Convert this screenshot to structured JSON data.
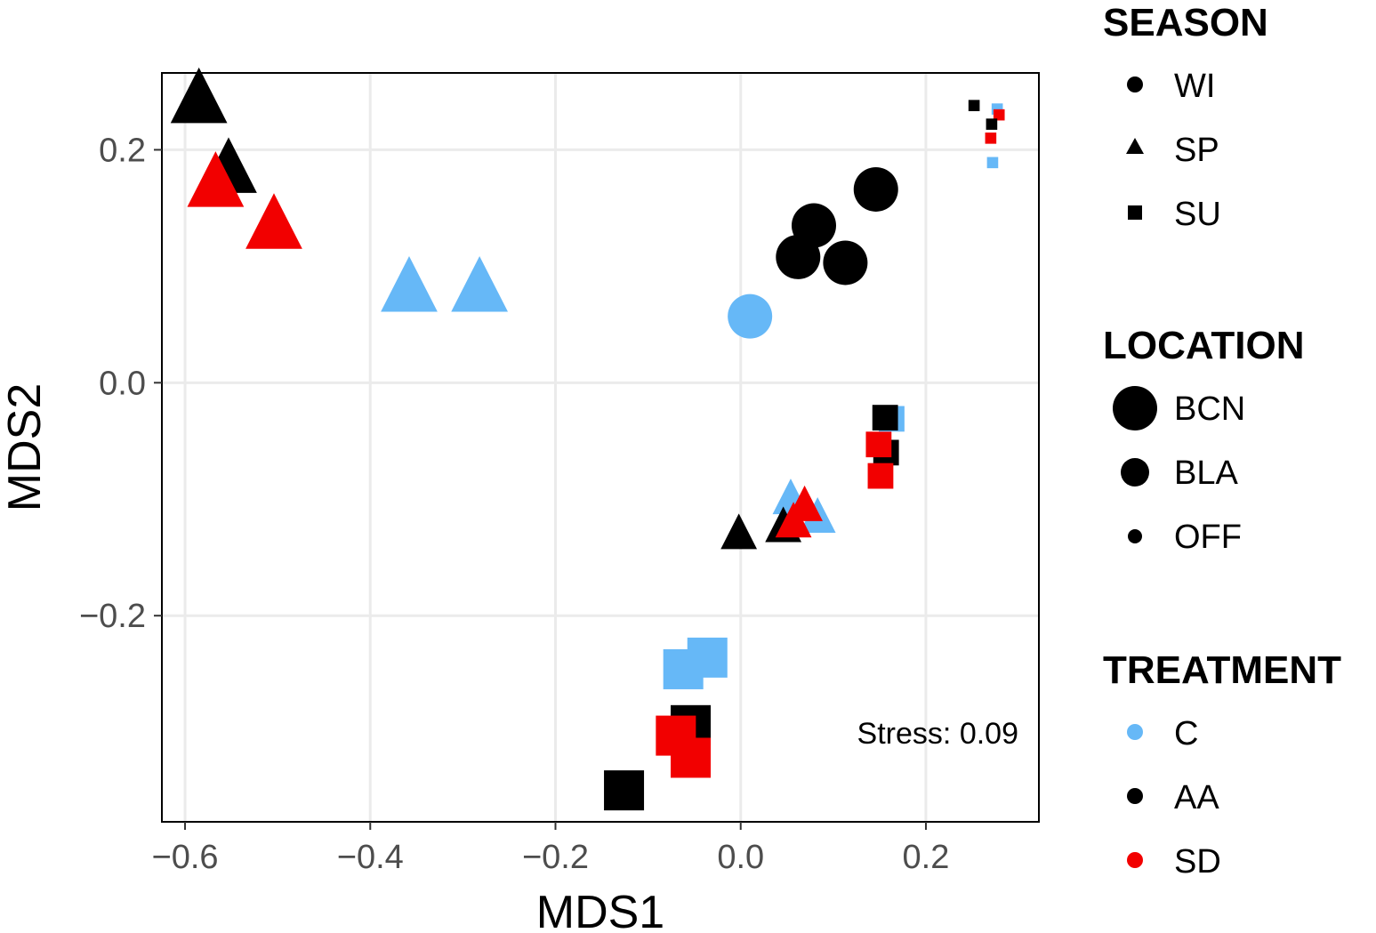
{
  "chart_data": {
    "type": "scatter",
    "title": "",
    "xlabel": "MDS1",
    "ylabel": "MDS2",
    "xlim": [
      -0.625,
      0.322
    ],
    "ylim": [
      -0.377,
      0.266
    ],
    "x_ticks": [
      -0.6,
      -0.4,
      -0.2,
      0.0,
      0.2
    ],
    "y_ticks": [
      -0.2,
      0.0,
      0.2
    ],
    "x_tick_labels": [
      "−0.6",
      "−0.4",
      "−0.2",
      "0.0",
      "0.2"
    ],
    "y_tick_labels": [
      "−0.2",
      "0.0",
      "0.2"
    ],
    "grid": true,
    "annotation": {
      "label": "Stress:",
      "value": "0.09"
    },
    "colors": {
      "C": "#66b8f7",
      "AA": "#000000",
      "SD": "#f20000"
    },
    "legend": {
      "season": {
        "title": "SEASON",
        "items": [
          {
            "label": "WI",
            "shape": "circle"
          },
          {
            "label": "SP",
            "shape": "triangle"
          },
          {
            "label": "SU",
            "shape": "square"
          }
        ]
      },
      "location": {
        "title": "LOCATION",
        "items": [
          {
            "label": "BCN",
            "size": "large"
          },
          {
            "label": "BLA",
            "size": "medium"
          },
          {
            "label": "OFF",
            "size": "small"
          }
        ]
      },
      "treatment": {
        "title": "TREATMENT",
        "items": [
          {
            "label": "C",
            "color": "#66b8f7"
          },
          {
            "label": "AA",
            "color": "#000000"
          },
          {
            "label": "SD",
            "color": "#f20000"
          }
        ]
      }
    },
    "points": [
      {
        "x": -0.585,
        "y": 0.243,
        "season": "SP",
        "location": "BCN",
        "treatment": "AA"
      },
      {
        "x": -0.553,
        "y": 0.183,
        "season": "SP",
        "location": "BCN",
        "treatment": "AA"
      },
      {
        "x": -0.567,
        "y": 0.171,
        "season": "SP",
        "location": "BCN",
        "treatment": "SD"
      },
      {
        "x": -0.504,
        "y": 0.135,
        "season": "SP",
        "location": "BCN",
        "treatment": "SD"
      },
      {
        "x": -0.358,
        "y": 0.081,
        "season": "SP",
        "location": "BCN",
        "treatment": "C"
      },
      {
        "x": -0.282,
        "y": 0.081,
        "season": "SP",
        "location": "BCN",
        "treatment": "C"
      },
      {
        "x": 0.146,
        "y": 0.166,
        "season": "WI",
        "location": "BCN",
        "treatment": "AA"
      },
      {
        "x": 0.079,
        "y": 0.135,
        "season": "WI",
        "location": "BCN",
        "treatment": "AA"
      },
      {
        "x": 0.062,
        "y": 0.108,
        "season": "WI",
        "location": "BCN",
        "treatment": "AA"
      },
      {
        "x": 0.113,
        "y": 0.103,
        "season": "WI",
        "location": "BCN",
        "treatment": "AA"
      },
      {
        "x": 0.01,
        "y": 0.057,
        "season": "WI",
        "location": "BCN",
        "treatment": "C"
      },
      {
        "x": 0.252,
        "y": 0.238,
        "season": "SU",
        "location": "OFF",
        "treatment": "AA"
      },
      {
        "x": 0.277,
        "y": 0.235,
        "season": "SU",
        "location": "OFF",
        "treatment": "C"
      },
      {
        "x": 0.279,
        "y": 0.23,
        "season": "SU",
        "location": "OFF",
        "treatment": "SD"
      },
      {
        "x": 0.271,
        "y": 0.222,
        "season": "SU",
        "location": "OFF",
        "treatment": "AA"
      },
      {
        "x": 0.27,
        "y": 0.21,
        "season": "SU",
        "location": "OFF",
        "treatment": "SD"
      },
      {
        "x": 0.272,
        "y": 0.189,
        "season": "SU",
        "location": "OFF",
        "treatment": "C"
      },
      {
        "x": 0.163,
        "y": -0.031,
        "season": "SU",
        "location": "BLA",
        "treatment": "C"
      },
      {
        "x": 0.156,
        "y": -0.03,
        "season": "SU",
        "location": "BLA",
        "treatment": "AA"
      },
      {
        "x": 0.157,
        "y": -0.06,
        "season": "SU",
        "location": "BLA",
        "treatment": "AA"
      },
      {
        "x": 0.149,
        "y": -0.053,
        "season": "SU",
        "location": "BLA",
        "treatment": "SD"
      },
      {
        "x": 0.151,
        "y": -0.08,
        "season": "SU",
        "location": "BLA",
        "treatment": "SD"
      },
      {
        "x": 0.054,
        "y": -0.1,
        "season": "SP",
        "location": "BLA",
        "treatment": "C"
      },
      {
        "x": 0.083,
        "y": -0.116,
        "season": "SP",
        "location": "BLA",
        "treatment": "C"
      },
      {
        "x": -0.002,
        "y": -0.13,
        "season": "SP",
        "location": "BLA",
        "treatment": "AA"
      },
      {
        "x": 0.046,
        "y": -0.124,
        "season": "SP",
        "location": "BLA",
        "treatment": "AA"
      },
      {
        "x": 0.069,
        "y": -0.106,
        "season": "SP",
        "location": "BLA",
        "treatment": "SD"
      },
      {
        "x": 0.057,
        "y": -0.12,
        "season": "SP",
        "location": "BLA",
        "treatment": "SD"
      },
      {
        "x": -0.036,
        "y": -0.236,
        "season": "SU",
        "location": "BCN",
        "treatment": "C"
      },
      {
        "x": -0.062,
        "y": -0.246,
        "season": "SU",
        "location": "BCN",
        "treatment": "C"
      },
      {
        "x": -0.054,
        "y": -0.294,
        "season": "SU",
        "location": "BCN",
        "treatment": "AA"
      },
      {
        "x": -0.07,
        "y": -0.303,
        "season": "SU",
        "location": "BCN",
        "treatment": "SD"
      },
      {
        "x": -0.054,
        "y": -0.322,
        "season": "SU",
        "location": "BCN",
        "treatment": "SD"
      },
      {
        "x": -0.126,
        "y": -0.35,
        "season": "SU",
        "location": "BCN",
        "treatment": "AA"
      }
    ]
  }
}
